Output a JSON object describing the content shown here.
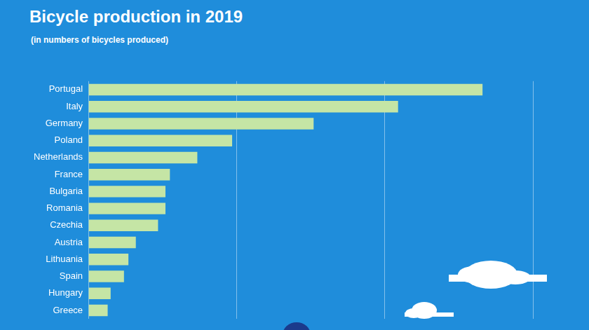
{
  "chart_data": {
    "type": "bar",
    "orientation": "horizontal",
    "title": "Bicycle production in 2019",
    "subtitle": "(in numbers of bicycles produced)",
    "categories": [
      "Portugal",
      "Italy",
      "Germany",
      "Poland",
      "Netherlands",
      "France",
      "Bulgaria",
      "Romania",
      "Czechia",
      "Austria",
      "Lithuania",
      "Spain",
      "Hungary",
      "Greece"
    ],
    "values": [
      2660000,
      2090000,
      1520000,
      970000,
      735000,
      550000,
      520000,
      520000,
      470000,
      320000,
      270000,
      240000,
      150000,
      130000
    ],
    "color": "#c5e5a5",
    "xlim": [
      0,
      3000000
    ],
    "xticks": [
      0,
      1000000,
      2000000,
      3000000
    ],
    "grid": true,
    "tick_labels": "y"
  }
}
